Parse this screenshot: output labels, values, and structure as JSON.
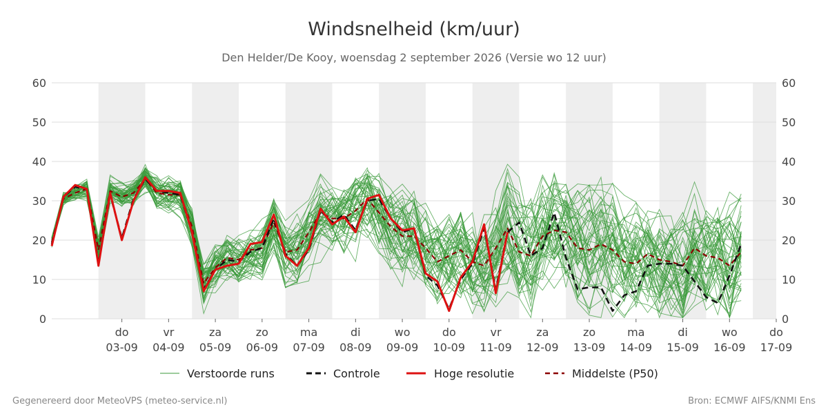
{
  "chart_data": {
    "type": "line",
    "title": "Windsnelheid (km/uur)",
    "subtitle": "Den Helder/De Kooy, woensdag  2 september 2026 (Versie wo 12 uur)",
    "x_start": "2026-09-02",
    "x_end": "2026-09-17",
    "x_step_hours": 6,
    "ylim": [
      0,
      60
    ],
    "yticks": [
      0,
      10,
      20,
      30,
      40,
      50,
      60
    ],
    "grid": true,
    "shaded_days": [
      "2026-09-03",
      "2026-09-05",
      "2026-09-07",
      "2026-09-09",
      "2026-09-11",
      "2026-09-13",
      "2026-09-15",
      "2026-09-17"
    ],
    "x_ticks": [
      {
        "day": "do",
        "date": "03-09"
      },
      {
        "day": "vr",
        "date": "04-09"
      },
      {
        "day": "za",
        "date": "05-09"
      },
      {
        "day": "zo",
        "date": "06-09"
      },
      {
        "day": "ma",
        "date": "07-09"
      },
      {
        "day": "di",
        "date": "08-09"
      },
      {
        "day": "wo",
        "date": "09-09"
      },
      {
        "day": "do",
        "date": "10-09"
      },
      {
        "day": "vr",
        "date": "11-09"
      },
      {
        "day": "za",
        "date": "12-09"
      },
      {
        "day": "zo",
        "date": "13-09"
      },
      {
        "day": "ma",
        "date": "14-09"
      },
      {
        "day": "di",
        "date": "15-09"
      },
      {
        "day": "wo",
        "date": "16-09"
      },
      {
        "day": "do",
        "date": "17-09"
      }
    ],
    "legend_placement": "bottom",
    "legend": [
      "Verstoorde runs",
      "Controle",
      "Hoge resolutie",
      "Middelste (P50)"
    ],
    "colors": {
      "ensemble": "#3a9a3a",
      "controle": "#111111",
      "hoge": "#dd1111",
      "p50": "#8b0000",
      "shade": "#eeeeee",
      "grid": "#dddddd"
    },
    "series": [
      {
        "name": "Hoge resolutie",
        "values": [
          18.5,
          31,
          34,
          33,
          13.5,
          32,
          20,
          30,
          36,
          32.5,
          32.5,
          32,
          22,
          7,
          12.5,
          13.5,
          14,
          19,
          19.5,
          26.5,
          16,
          13.5,
          18,
          28,
          24,
          26,
          22,
          30.5,
          31.5,
          25.5,
          22.5,
          23,
          11.5,
          9.5,
          2,
          10.5,
          14.5,
          24,
          6.5,
          22
        ]
      },
      {
        "name": "Controle",
        "values": [
          19,
          31,
          33.5,
          33,
          14,
          31.5,
          20.5,
          30.5,
          35.5,
          32.5,
          32,
          31.5,
          22,
          7.5,
          12.5,
          15,
          14.5,
          17,
          18,
          25.5,
          16.5,
          13.5,
          17.5,
          27.5,
          24.5,
          26.5,
          22.5,
          30,
          30.5,
          25.5,
          22,
          23,
          11,
          8.5,
          2.5,
          10,
          14,
          23,
          7.5,
          22,
          24.5,
          16,
          18,
          27,
          15.5,
          7.5,
          8,
          8,
          2,
          6,
          7,
          13.5,
          14,
          14,
          13.5,
          9.5,
          5.5,
          4,
          11,
          19
        ]
      },
      {
        "name": "Middelste (P50)",
        "values": [
          19.5,
          30.5,
          32,
          33,
          17.5,
          32.5,
          31,
          32,
          35.5,
          32,
          31.5,
          31.5,
          23.5,
          9,
          13,
          15.5,
          15,
          17.5,
          18,
          24.5,
          17,
          17.5,
          22,
          27,
          25.5,
          25.5,
          27.5,
          30.5,
          27,
          23.5,
          21,
          21,
          18,
          14.5,
          16,
          17.5,
          14.5,
          13.5,
          18,
          23,
          17,
          16,
          21,
          22.5,
          22,
          18,
          17.5,
          19,
          17.5,
          14.5,
          14,
          16.5,
          15,
          14.5,
          13.5,
          18,
          16,
          15.5,
          13.5,
          17
        ]
      }
    ]
  },
  "legend_labels": {
    "ens": "Verstoorde runs",
    "ctrl": "Controle",
    "hres": "Hoge resolutie",
    "p50": "Middelste (P50)"
  },
  "footer": {
    "left": "Gegenereerd door MeteoVPS (meteo-service.nl)",
    "right": "Bron: ECMWF AIFS/KNMI Ens"
  }
}
